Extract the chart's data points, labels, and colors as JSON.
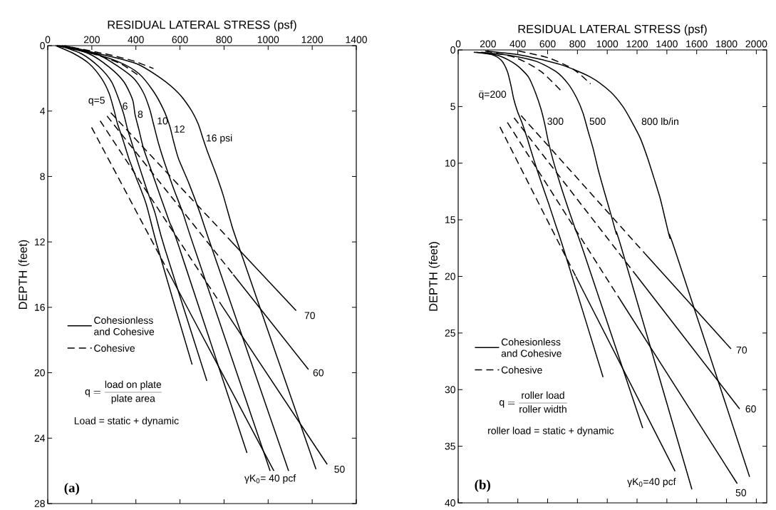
{
  "chart_data": [
    {
      "type": "line",
      "xlabel": "RESIDUAL LATERAL STRESS (psf)",
      "ylabel": "DEPTH (feet)",
      "xlim": [
        0,
        1400
      ],
      "xticks": [
        0,
        200,
        400,
        600,
        800,
        1000,
        1200,
        1400
      ],
      "ylim": [
        28,
        0
      ],
      "yticks": [
        0,
        4,
        8,
        12,
        16,
        20,
        24,
        28
      ],
      "legend": "left",
      "series": [
        {
          "name": "Cohesionless and Cohesive",
          "color": "#000000",
          "line_style": "solid",
          "x": [
            36,
            120,
            188,
            244,
            278,
            300,
            317,
            340,
            368,
            402,
            447,
            500,
            655
          ],
          "values": [
            0,
            0.5,
            1.1,
            2.0,
            2.9,
            3.9,
            4.8,
            5.7,
            6.9,
            8.1,
            9.7,
            12.4,
            19.5
          ]
        },
        {
          "color": "#000000",
          "line_style": "solid",
          "x": [
            53,
            154,
            233,
            289,
            323,
            345,
            362,
            385,
            413,
            447,
            486,
            531,
            722
          ],
          "values": [
            0,
            0.5,
            1.3,
            2.2,
            3.3,
            4.2,
            5.1,
            6.1,
            7.3,
            8.7,
            10.2,
            12.4,
            20.5
          ]
        },
        {
          "color": "#000000",
          "line_style": "solid",
          "x": [
            64,
            188,
            278,
            345,
            385,
            396,
            413,
            435,
            469,
            508,
            553,
            598,
            904
          ],
          "values": [
            0,
            0.5,
            1.3,
            2.2,
            3.3,
            4.2,
            5.1,
            6.3,
            7.6,
            9.1,
            10.8,
            12.4,
            24.9
          ]
        },
        {
          "color": "#000000",
          "line_style": "solid",
          "x": [
            75,
            222,
            323,
            390,
            435,
            463,
            480,
            503,
            531,
            570,
            615,
            666,
            1009
          ],
          "values": [
            0,
            0.5,
            1.3,
            2.0,
            2.9,
            3.9,
            4.8,
            6.0,
            7.2,
            8.7,
            10.3,
            12.4,
            26.0
          ]
        },
        {
          "color": "#000000",
          "line_style": "solid",
          "x": [
            42,
            210,
            323,
            413,
            480,
            525,
            553,
            570,
            593,
            640,
            690,
            745,
            1093
          ],
          "values": [
            0,
            0.5,
            1.0,
            1.7,
            2.8,
            3.9,
            4.9,
            5.8,
            6.9,
            8.4,
            10.2,
            12.4,
            26.0
          ]
        },
        {
          "color": "#000000",
          "line_style": "solid",
          "x": [
            42,
            233,
            402,
            514,
            593,
            649,
            683,
            705,
            728,
            762,
            795,
            831,
            870,
            1217
          ],
          "values": [
            0,
            0.5,
            1.1,
            2.0,
            2.9,
            3.9,
            4.8,
            5.7,
            6.6,
            7.8,
            9.1,
            10.8,
            12.4,
            25.9
          ]
        },
        {
          "name": "Cohesive",
          "color": "#000000",
          "line_style": "dashed",
          "x": [
            110,
            260,
            380,
            480
          ],
          "values": [
            0.1,
            0.5,
            0.9,
            1.4
          ]
        },
        {
          "color": "#000000",
          "line_style": "dashed",
          "x": [
            90,
            230,
            330,
            410
          ],
          "values": [
            0.1,
            0.6,
            1.1,
            1.8
          ]
        },
        {
          "color": "#000000",
          "line_style": "dashed",
          "x": [
            199,
            554
          ],
          "values": [
            5.0,
            14.0
          ]
        },
        {
          "color": "#000000",
          "line_style": "solid",
          "x": [
            554,
            1026
          ],
          "values": [
            14.0,
            26.0
          ]
        },
        {
          "color": "#000000",
          "line_style": "dashed",
          "x": [
            238,
            795
          ],
          "values": [
            4.6,
            16.0
          ]
        },
        {
          "color": "#000000",
          "line_style": "solid",
          "x": [
            795,
            1268
          ],
          "values": [
            16.0,
            25.6
          ]
        },
        {
          "color": "#000000",
          "line_style": "dashed",
          "x": [
            269,
            842
          ],
          "values": [
            4.3,
            14.0
          ]
        },
        {
          "color": "#000000",
          "line_style": "solid",
          "x": [
            842,
            1183
          ],
          "values": [
            14.0,
            19.8
          ]
        },
        {
          "color": "#000000",
          "line_style": "dashed",
          "x": [
            286,
            835
          ],
          "values": [
            4.1,
            12.0
          ]
        },
        {
          "color": "#000000",
          "line_style": "solid",
          "x": [
            835,
            1127
          ],
          "values": [
            12.0,
            16.2
          ]
        }
      ],
      "annotations": [
        "q=5",
        "6",
        "8",
        "10",
        "12",
        "16 psi",
        "70",
        "60",
        "50",
        "γK$_{0}$= 40 pcf",
        "\\mbox{q} = \\frac{\\mbox{load on plate}}{\\mbox{plate area}}",
        "Load = static + dynamic",
        "(a)"
      ]
    },
    {
      "type": "line",
      "xlabel": "RESIDUAL LATERAL STRESS (psf)",
      "ylabel": "DEPTH (feet)",
      "xlim": [
        0,
        2070
      ],
      "xticks": [
        0,
        200,
        400,
        600,
        800,
        1000,
        1200,
        1400,
        1600,
        1800,
        2000
      ],
      "ylim": [
        40,
        0
      ],
      "yticks": [
        0,
        5,
        10,
        15,
        20,
        25,
        30,
        35,
        40
      ],
      "legend": "left",
      "series": [
        {
          "name": "Cohesionless and Cohesive",
          "color": "#000000",
          "line_style": "solid",
          "x": [
            105,
            222,
            288,
            330,
            355,
            372,
            397,
            430,
            463,
            505,
            555,
            605,
            655,
            710,
            972
          ],
          "values": [
            0.2,
            0.4,
            0.9,
            1.9,
            3.2,
            4.3,
            5.4,
            6.5,
            7.8,
            9.6,
            11.6,
            13.5,
            15.5,
            17.7,
            28.9
          ]
        },
        {
          "color": "#000000",
          "line_style": "solid",
          "x": [
            122,
            272,
            388,
            472,
            522,
            555,
            580,
            605,
            638,
            688,
            738,
            788,
            838,
            1238
          ],
          "values": [
            0.2,
            0.5,
            1.3,
            2.4,
            3.9,
            5.2,
            6.5,
            8.1,
            9.8,
            12.0,
            14.0,
            15.9,
            17.7,
            33.4
          ]
        },
        {
          "color": "#000000",
          "line_style": "solid",
          "x": [
            155,
            355,
            522,
            655,
            738,
            797,
            838,
            872,
            905,
            938,
            980,
            1022,
            1060,
            1100,
            1568
          ],
          "values": [
            0.2,
            0.5,
            1.0,
            1.9,
            3.0,
            4.3,
            5.6,
            7.2,
            8.7,
            10.5,
            12.5,
            14.4,
            16.2,
            17.7,
            38.8
          ]
        },
        {
          "color": "#000000",
          "line_style": "solid",
          "x": [
            188,
            438,
            688,
            888,
            1022,
            1105,
            1163,
            1222,
            1272,
            1313,
            1355,
            1388,
            1420,
            1455,
            1955
          ],
          "values": [
            0.1,
            0.5,
            1.3,
            2.4,
            3.7,
            5.0,
            6.3,
            7.8,
            9.6,
            11.3,
            13.1,
            14.9,
            16.6,
            17.7,
            37.7
          ]
        },
        {
          "name": "Cohesive",
          "color": "#000000",
          "line_style": "dashed",
          "x": [
            180,
            388,
            555,
            697
          ],
          "values": [
            0.1,
            0.7,
            1.9,
            3.7
          ]
        },
        {
          "color": "#000000",
          "line_style": "dashed",
          "x": [
            405,
            605,
            772,
            888
          ],
          "values": [
            0.1,
            0.7,
            1.7,
            3.0
          ]
        },
        {
          "color": "#000000",
          "line_style": "dashed",
          "x": [
            280,
            789
          ],
          "values": [
            6.8,
            20.0
          ]
        },
        {
          "color": "#000000",
          "line_style": "solid",
          "x": [
            789,
            1455
          ],
          "values": [
            20.0,
            37.2
          ]
        },
        {
          "color": "#000000",
          "line_style": "dashed",
          "x": [
            330,
            1084
          ],
          "values": [
            6.4,
            22.0
          ]
        },
        {
          "color": "#000000",
          "line_style": "solid",
          "x": [
            1084,
            1872
          ],
          "values": [
            22.0,
            38.3
          ]
        },
        {
          "color": "#000000",
          "line_style": "dashed",
          "x": [
            375,
            1200
          ],
          "values": [
            6.0,
            20.0
          ]
        },
        {
          "color": "#000000",
          "line_style": "solid",
          "x": [
            1200,
            1888
          ],
          "values": [
            20.0,
            31.7
          ]
        },
        {
          "color": "#000000",
          "line_style": "dashed",
          "x": [
            422,
            1254
          ],
          "values": [
            5.8,
            18.0
          ]
        },
        {
          "color": "#000000",
          "line_style": "solid",
          "x": [
            1254,
            1830
          ],
          "values": [
            18.0,
            26.4
          ]
        }
      ],
      "annotations": [
        "\\bar{\\mbox{q}}\\mbox{=200}",
        "300",
        "500",
        "800 lb/in",
        "70",
        "60",
        "50",
        "γK$_{0}$=40 pcf",
        "\\mbox{q} = \\frac{\\mbox{roller load}}{\\mbox{roller width}}",
        "roller load = static + dynamic",
        "(b)"
      ]
    }
  ]
}
